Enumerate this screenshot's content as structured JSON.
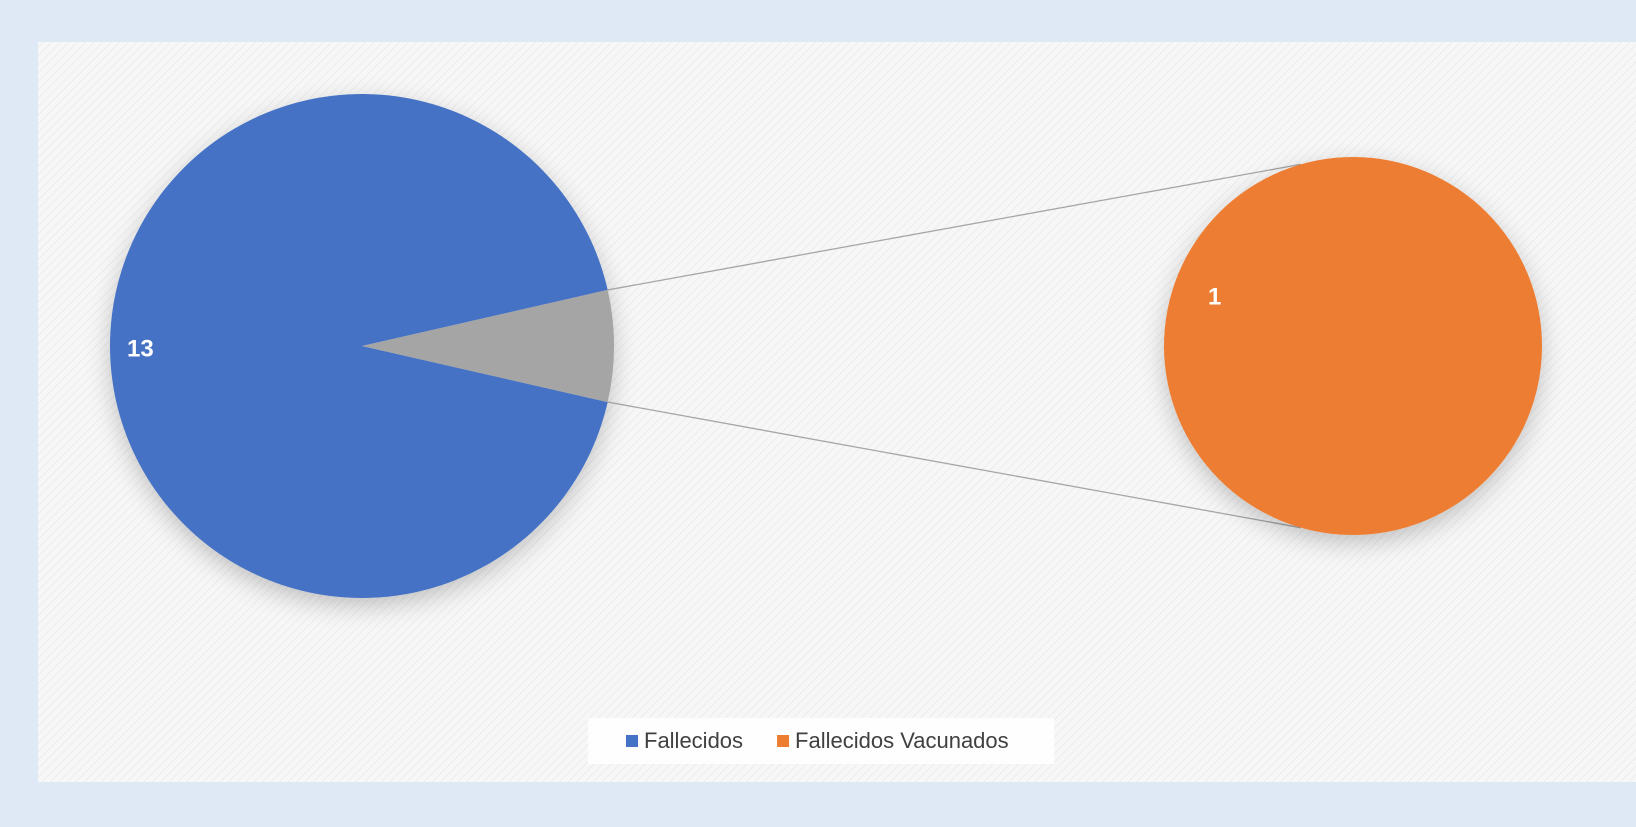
{
  "chart_data": {
    "type": "pie",
    "categories": [
      "Fallecidos",
      "Fallecidos Vacunados"
    ],
    "values": [
      13,
      1
    ],
    "colors": [
      "#4472c4",
      "#ed7d31"
    ],
    "other_color": "#a5a5a5"
  }
}
